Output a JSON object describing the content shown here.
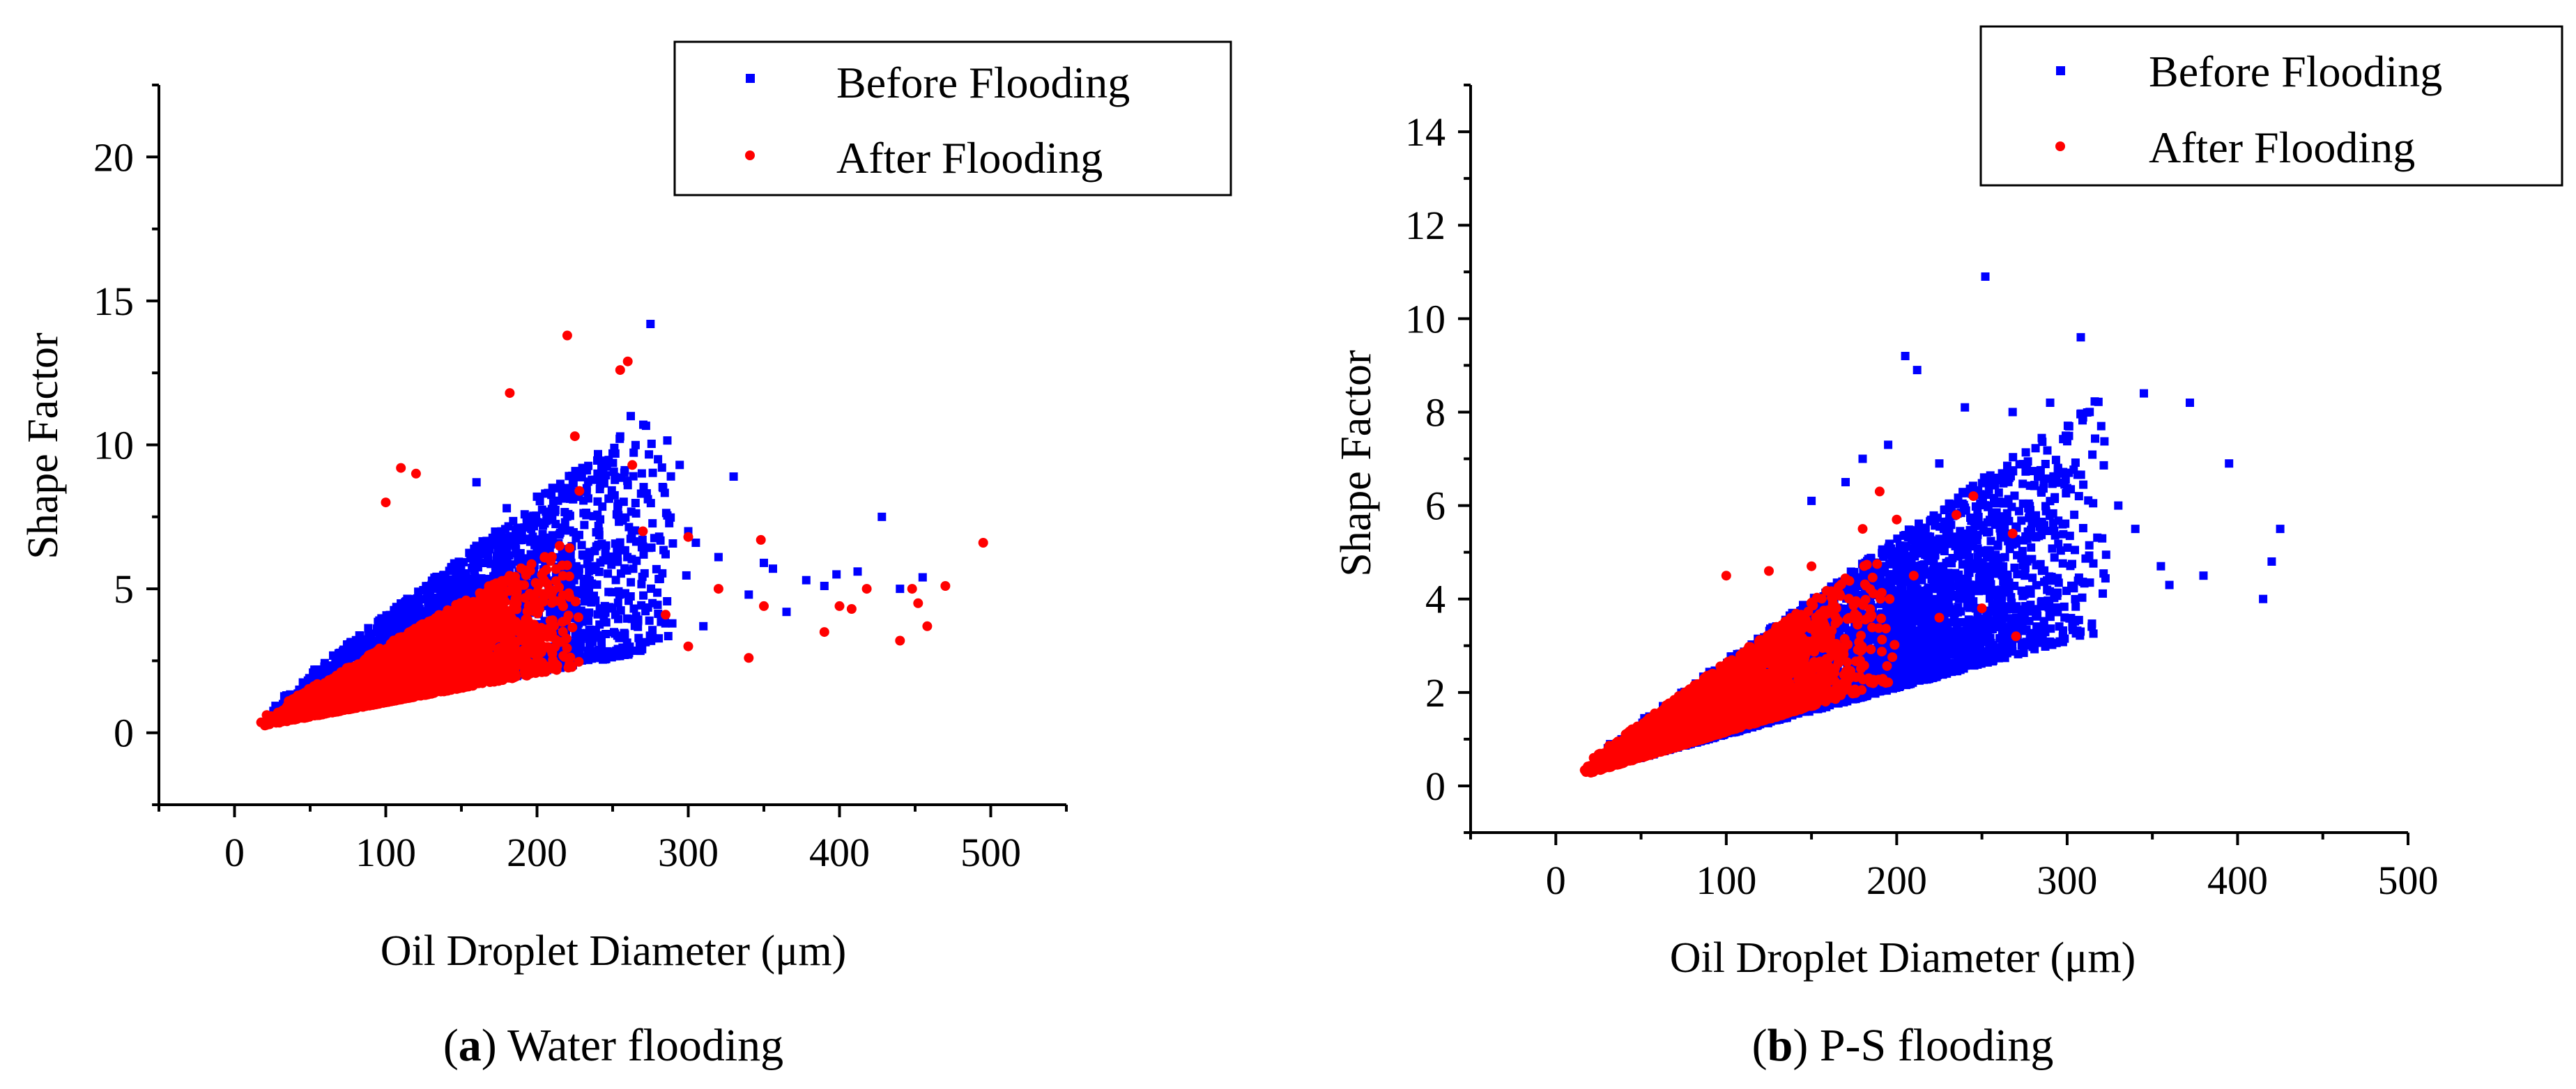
{
  "chart_data": [
    {
      "type": "scatter",
      "panel": "a",
      "caption_letter": "a",
      "caption_text": "Water flooding",
      "xlabel": "Oil Droplet Diameter (μm)",
      "ylabel": "Shape Factor",
      "xlim": [
        -50,
        550
      ],
      "ylim": [
        -2.5,
        22.5
      ],
      "xticks": [
        0,
        100,
        200,
        300,
        400,
        500
      ],
      "yticks": [
        0,
        5,
        10,
        15,
        20
      ],
      "legend_position": "top-right",
      "series": [
        {
          "name": "Before Flooding",
          "color": "#0000ff",
          "marker": "square",
          "cloud": {
            "n": 2600,
            "x_min": 20,
            "x_max": 300,
            "x_mode": 135,
            "slope_lo": 0.01,
            "slope_hi": 0.04,
            "base": 0.1
          },
          "outliers": [
            [
              230,
              9.2
            ],
            [
              250,
              9.7
            ],
            [
              260,
              8.6
            ],
            [
              275,
              14.2
            ],
            [
              262,
              11.0
            ],
            [
              240,
              9.0
            ],
            [
              220,
              8.5
            ],
            [
              280,
              9.5
            ],
            [
              330,
              8.9
            ],
            [
              305,
              6.6
            ],
            [
              320,
              6.1
            ],
            [
              350,
              5.9
            ],
            [
              356,
              5.7
            ],
            [
              378,
              5.3
            ],
            [
              390,
              5.1
            ],
            [
              398,
              5.5
            ],
            [
              412,
              5.6
            ],
            [
              428,
              7.5
            ],
            [
              440,
              5.0
            ],
            [
              455,
              5.4
            ],
            [
              160,
              8.7
            ],
            [
              180,
              7.8
            ],
            [
              200,
              8.2
            ],
            [
              210,
              7.5
            ],
            [
              190,
              6.9
            ],
            [
              300,
              7.0
            ],
            [
              285,
              6.2
            ],
            [
              340,
              4.8
            ],
            [
              365,
              4.2
            ],
            [
              310,
              3.7
            ]
          ]
        },
        {
          "name": "After Flooding",
          "color": "#ff0000",
          "marker": "circle",
          "cloud": {
            "n": 2400,
            "x_min": 15,
            "x_max": 230,
            "x_mode": 110,
            "slope_lo": 0.01,
            "slope_hi": 0.03,
            "base": 0.05
          },
          "outliers": [
            [
              220,
              13.8
            ],
            [
              255,
              12.6
            ],
            [
              260,
              12.9
            ],
            [
              182,
              11.8
            ],
            [
              225,
              10.3
            ],
            [
              228,
              8.4
            ],
            [
              110,
              9.2
            ],
            [
              120,
              9.0
            ],
            [
              100,
              8.0
            ],
            [
              263,
              9.3
            ],
            [
              270,
              7.0
            ],
            [
              300,
              6.8
            ],
            [
              320,
              5.0
            ],
            [
              348,
              6.7
            ],
            [
              350,
              4.4
            ],
            [
              400,
              4.4
            ],
            [
              408,
              4.3
            ],
            [
              418,
              5.0
            ],
            [
              440,
              3.2
            ],
            [
              448,
              5.0
            ],
            [
              452,
              4.5
            ],
            [
              458,
              3.7
            ],
            [
              470,
              5.1
            ],
            [
              495,
              6.6
            ],
            [
              390,
              3.5
            ],
            [
              285,
              4.1
            ],
            [
              340,
              2.6
            ],
            [
              300,
              3.0
            ]
          ]
        }
      ]
    },
    {
      "type": "scatter",
      "panel": "b",
      "caption_letter": "b",
      "caption_text": "P-S flooding",
      "xlabel": "Oil Droplet Diameter (μm)",
      "ylabel": "Shape Factor",
      "xlim": [
        -50,
        500
      ],
      "ylim": [
        -1,
        15
      ],
      "xticks": [
        0,
        100,
        200,
        300,
        400,
        500
      ],
      "yticks": [
        0,
        2,
        4,
        6,
        8,
        10,
        12,
        14
      ],
      "legend_position": "top-right",
      "series": [
        {
          "name": "Before Flooding",
          "color": "#0000ff",
          "marker": "square",
          "cloud": {
            "n": 3200,
            "x_min": 18,
            "x_max": 330,
            "x_mode": 210,
            "slope_lo": 0.01,
            "slope_hi": 0.026,
            "base": 0.1
          },
          "outliers": [
            [
              252,
              10.9
            ],
            [
              205,
              9.2
            ],
            [
              212,
              8.9
            ],
            [
              308,
              9.6
            ],
            [
              345,
              8.4
            ],
            [
              372,
              8.2
            ],
            [
              395,
              6.9
            ],
            [
              425,
              5.5
            ],
            [
              420,
              4.8
            ],
            [
              415,
              4.0
            ],
            [
              380,
              4.5
            ],
            [
              360,
              4.3
            ],
            [
              320,
              7.7
            ],
            [
              290,
              8.2
            ],
            [
              268,
              8.0
            ],
            [
              240,
              8.1
            ],
            [
              150,
              6.1
            ],
            [
              170,
              6.5
            ],
            [
              180,
              7.0
            ],
            [
              195,
              7.3
            ],
            [
              225,
              6.9
            ],
            [
              330,
              6.0
            ],
            [
              340,
              5.5
            ],
            [
              355,
              4.7
            ]
          ]
        },
        {
          "name": "After Flooding",
          "color": "#ff0000",
          "marker": "circle",
          "cloud": {
            "n": 2300,
            "x_min": 15,
            "x_max": 200,
            "x_mode": 80,
            "slope_lo": 0.011,
            "slope_hi": 0.026,
            "base": 0.05
          },
          "outliers": [
            [
              100,
              4.5
            ],
            [
              125,
              4.6
            ],
            [
              150,
              4.7
            ],
            [
              180,
              5.5
            ],
            [
              190,
              6.3
            ],
            [
              200,
              5.7
            ],
            [
              235,
              5.8
            ],
            [
              245,
              6.2
            ],
            [
              268,
              5.4
            ],
            [
              210,
              4.5
            ],
            [
              225,
              3.6
            ],
            [
              250,
              3.8
            ],
            [
              270,
              3.2
            ]
          ]
        }
      ]
    }
  ]
}
